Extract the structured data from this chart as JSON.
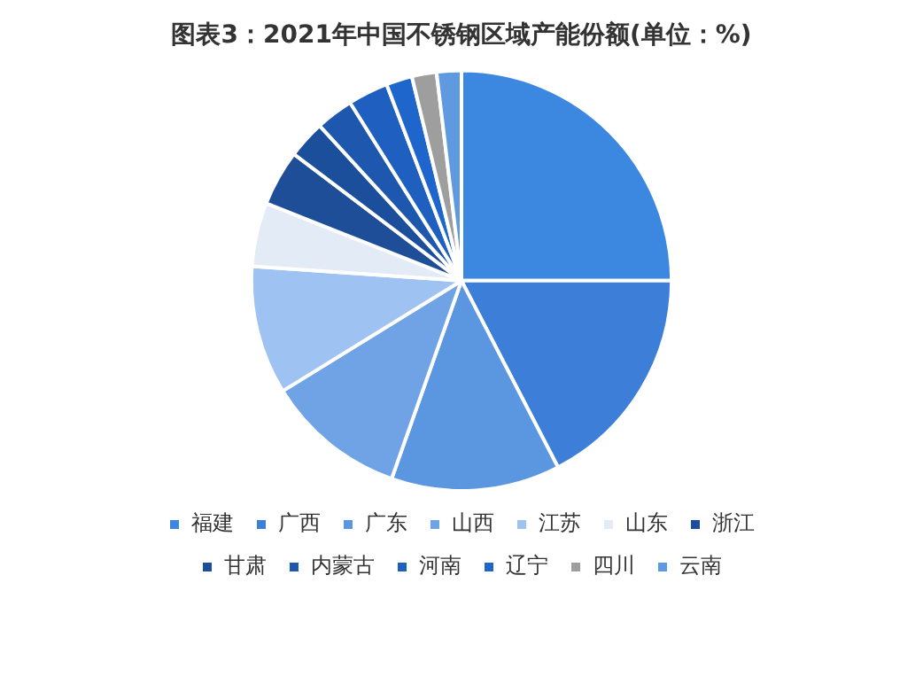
{
  "chart_data": {
    "type": "pie",
    "title": "图表3：2021年中国不锈钢区域产能份额(单位：%)",
    "categories": [
      "福建",
      "广西",
      "广东",
      "山西",
      "江苏",
      "山东",
      "浙江",
      "甘肃",
      "内蒙古",
      "河南",
      "辽宁",
      "四川",
      "云南"
    ],
    "values": [
      25,
      17.4,
      13,
      10.8,
      9.9,
      4.9,
      4.3,
      2.9,
      2.9,
      3.1,
      2,
      1.9,
      1.9
    ],
    "colors": [
      "#3c87e0",
      "#3d7fd8",
      "#5b96e0",
      "#6fa3e6",
      "#9ec3f2",
      "#e3ebf7",
      "#1f4e99",
      "#1b4f9c",
      "#1d57ae",
      "#1f5fbf",
      "#1e66cc",
      "#9e9e9e",
      "#5f9ae0"
    ],
    "legend": "bottom"
  }
}
